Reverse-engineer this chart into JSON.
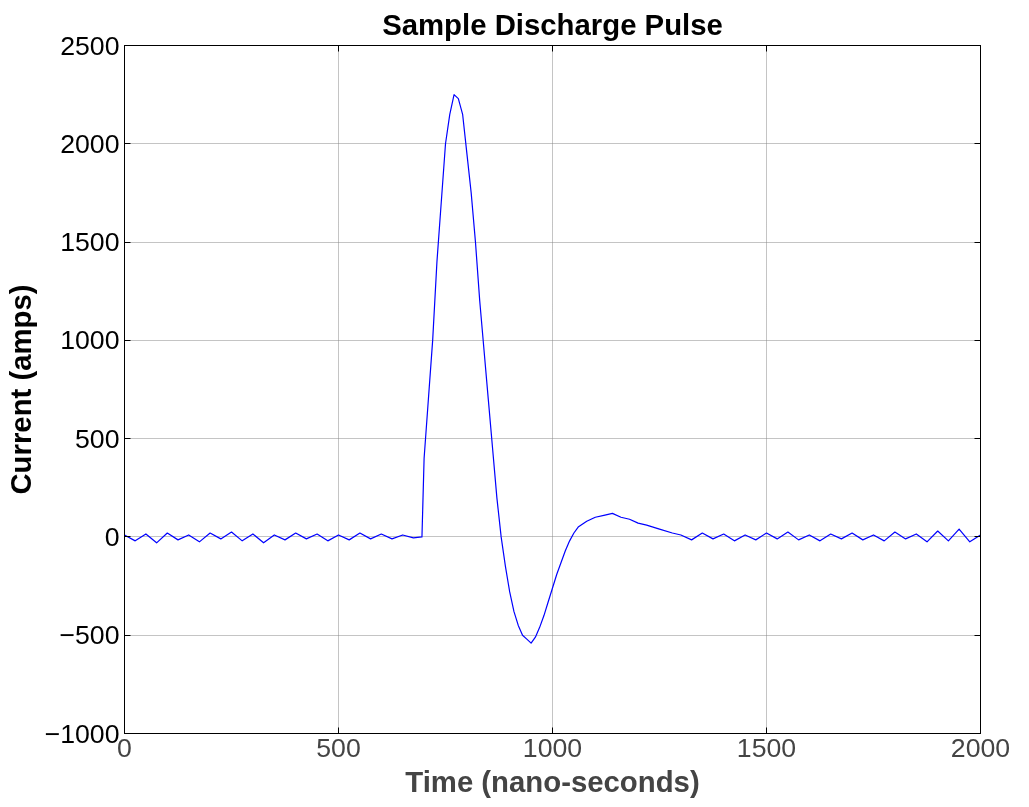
{
  "chart_data": {
    "type": "line",
    "title": "Sample Discharge Pulse",
    "xlabel": "Time (nano-seconds)",
    "ylabel": "Current (amps)",
    "series": [
      {
        "color": "#0000ff",
        "x": [
          0,
          25,
          50,
          75,
          100,
          125,
          150,
          175,
          200,
          225,
          250,
          275,
          300,
          325,
          350,
          375,
          400,
          425,
          450,
          475,
          500,
          525,
          550,
          575,
          600,
          625,
          650,
          675,
          695,
          700,
          710,
          720,
          730,
          740,
          750,
          760,
          770,
          780,
          790,
          800,
          810,
          820,
          830,
          840,
          850,
          860,
          870,
          880,
          890,
          900,
          910,
          920,
          930,
          940,
          950,
          960,
          970,
          980,
          990,
          1000,
          1010,
          1020,
          1030,
          1040,
          1050,
          1060,
          1080,
          1100,
          1120,
          1140,
          1160,
          1180,
          1200,
          1220,
          1250,
          1280,
          1300,
          1325,
          1350,
          1375,
          1400,
          1425,
          1450,
          1475,
          1500,
          1525,
          1550,
          1575,
          1600,
          1625,
          1650,
          1675,
          1700,
          1725,
          1750,
          1775,
          1800,
          1825,
          1850,
          1875,
          1900,
          1925,
          1950,
          1975,
          2000
        ],
        "values": [
          10,
          -20,
          15,
          -30,
          20,
          -15,
          10,
          -25,
          20,
          -10,
          25,
          -20,
          15,
          -30,
          10,
          -15,
          20,
          -10,
          15,
          -20,
          10,
          -15,
          20,
          -10,
          15,
          -10,
          10,
          -5,
          0,
          400,
          700,
          1000,
          1400,
          1700,
          2000,
          2150,
          2250,
          2230,
          2150,
          1950,
          1750,
          1500,
          1200,
          950,
          700,
          450,
          200,
          0,
          -150,
          -280,
          -380,
          -450,
          -500,
          -520,
          -540,
          -510,
          -460,
          -400,
          -330,
          -260,
          -190,
          -130,
          -70,
          -20,
          20,
          50,
          80,
          100,
          110,
          120,
          100,
          90,
          70,
          60,
          40,
          20,
          10,
          -15,
          20,
          -10,
          15,
          -20,
          10,
          -15,
          20,
          -10,
          25,
          -15,
          10,
          -20,
          15,
          -10,
          20,
          -15,
          10,
          -20,
          25,
          -10,
          15,
          -25,
          30,
          -20,
          40,
          -25,
          10
        ]
      }
    ],
    "xlim": [
      0,
      2000
    ],
    "xticks": [
      0,
      500,
      1000,
      1500,
      2000
    ],
    "ylim": [
      -1000,
      2500
    ],
    "yticks": [
      -1000,
      -500,
      0,
      500,
      1000,
      1500,
      2000,
      2500
    ],
    "grid": true,
    "marker": "none",
    "line_style": "solid"
  }
}
